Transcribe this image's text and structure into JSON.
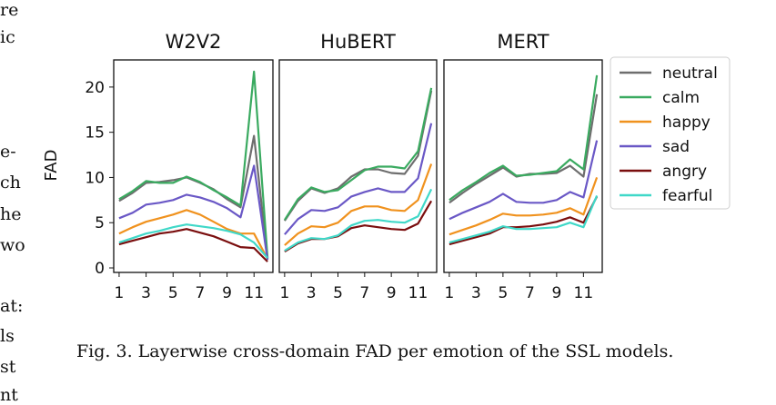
{
  "left_fragments": [
    "re",
    "ic",
    "e-",
    "ch",
    "he",
    "wo",
    "at:",
    "ls",
    "st",
    "nt"
  ],
  "caption": "Fig. 3.  Layerwise cross-domain FAD per emotion of the SSL models.",
  "chart_data": {
    "type": "line",
    "ylabel": "FAD",
    "ylim": [
      -0.5,
      23
    ],
    "yticks": [
      0,
      5,
      10,
      15,
      20
    ],
    "xlim": [
      0.6,
      12.4
    ],
    "xticks": [
      1,
      3,
      5,
      7,
      9,
      11
    ],
    "x": [
      1,
      2,
      3,
      4,
      5,
      6,
      7,
      8,
      9,
      10,
      11,
      12
    ],
    "legend_position": "right",
    "colors": {
      "neutral": "#6e6e6e",
      "calm": "#3aaa60",
      "happy": "#f0921e",
      "sad": "#6a58c6",
      "angry": "#7a0e0e",
      "fearful": "#40d8c8"
    },
    "panels": [
      {
        "title": "W2V2",
        "series": [
          {
            "name": "neutral",
            "values": [
              7.4,
              8.3,
              9.4,
              9.5,
              9.7,
              10.0,
              9.4,
              8.7,
              7.6,
              6.7,
              14.6,
              1.0
            ]
          },
          {
            "name": "calm",
            "values": [
              7.6,
              8.5,
              9.6,
              9.4,
              9.4,
              10.1,
              9.5,
              8.6,
              7.8,
              6.9,
              21.7,
              1.1
            ]
          },
          {
            "name": "happy",
            "values": [
              3.8,
              4.5,
              5.1,
              5.5,
              5.9,
              6.4,
              5.9,
              5.1,
              4.3,
              3.8,
              3.8,
              1.0
            ]
          },
          {
            "name": "sad",
            "values": [
              5.5,
              6.1,
              7.0,
              7.2,
              7.5,
              8.1,
              7.8,
              7.3,
              6.6,
              5.6,
              11.3,
              0.9
            ]
          },
          {
            "name": "angry",
            "values": [
              2.6,
              3.0,
              3.4,
              3.8,
              4.0,
              4.3,
              3.9,
              3.5,
              2.9,
              2.3,
              2.2,
              0.7
            ]
          },
          {
            "name": "fearful",
            "values": [
              2.8,
              3.3,
              3.8,
              4.1,
              4.5,
              4.8,
              4.6,
              4.4,
              4.1,
              3.7,
              2.8,
              1.1
            ]
          }
        ]
      },
      {
        "title": "HuBERT",
        "series": [
          {
            "name": "neutral",
            "values": [
              5.2,
              7.4,
              8.8,
              8.3,
              8.8,
              10.1,
              10.9,
              10.9,
              10.5,
              10.4,
              12.4,
              19.6
            ]
          },
          {
            "name": "calm",
            "values": [
              5.3,
              7.6,
              8.9,
              8.4,
              8.6,
              9.7,
              10.8,
              11.2,
              11.2,
              11.0,
              12.9,
              19.9
            ]
          },
          {
            "name": "happy",
            "values": [
              2.5,
              3.8,
              4.6,
              4.5,
              5.0,
              6.3,
              6.8,
              6.8,
              6.4,
              6.3,
              7.5,
              11.5
            ]
          },
          {
            "name": "sad",
            "values": [
              3.7,
              5.4,
              6.4,
              6.3,
              6.7,
              7.9,
              8.4,
              8.8,
              8.4,
              8.4,
              9.9,
              16.0
            ]
          },
          {
            "name": "angry",
            "values": [
              1.8,
              2.7,
              3.2,
              3.2,
              3.5,
              4.4,
              4.7,
              4.5,
              4.3,
              4.2,
              4.9,
              7.4
            ]
          },
          {
            "name": "fearful",
            "values": [
              1.9,
              2.8,
              3.3,
              3.2,
              3.6,
              4.7,
              5.2,
              5.3,
              5.1,
              5.0,
              5.7,
              8.7
            ]
          }
        ]
      },
      {
        "title": "MERT",
        "series": [
          {
            "name": "neutral",
            "values": [
              7.2,
              8.3,
              9.3,
              10.2,
              11.1,
              10.1,
              10.4,
              10.4,
              10.5,
              11.3,
              10.1,
              19.2
            ]
          },
          {
            "name": "calm",
            "values": [
              7.5,
              8.6,
              9.5,
              10.5,
              11.3,
              10.2,
              10.3,
              10.5,
              10.7,
              12.0,
              10.9,
              21.3
            ]
          },
          {
            "name": "happy",
            "values": [
              3.7,
              4.2,
              4.7,
              5.3,
              6.0,
              5.8,
              5.8,
              5.9,
              6.1,
              6.6,
              5.9,
              10.0
            ]
          },
          {
            "name": "sad",
            "values": [
              5.4,
              6.1,
              6.7,
              7.3,
              8.2,
              7.3,
              7.2,
              7.2,
              7.5,
              8.4,
              7.8,
              14.1
            ]
          },
          {
            "name": "angry",
            "values": [
              2.6,
              3.0,
              3.4,
              3.8,
              4.5,
              4.5,
              4.6,
              4.8,
              5.1,
              5.6,
              5.0,
              7.9
            ]
          },
          {
            "name": "fearful",
            "values": [
              2.8,
              3.2,
              3.6,
              4.0,
              4.6,
              4.3,
              4.3,
              4.4,
              4.5,
              5.0,
              4.5,
              8.0
            ]
          }
        ]
      }
    ]
  }
}
